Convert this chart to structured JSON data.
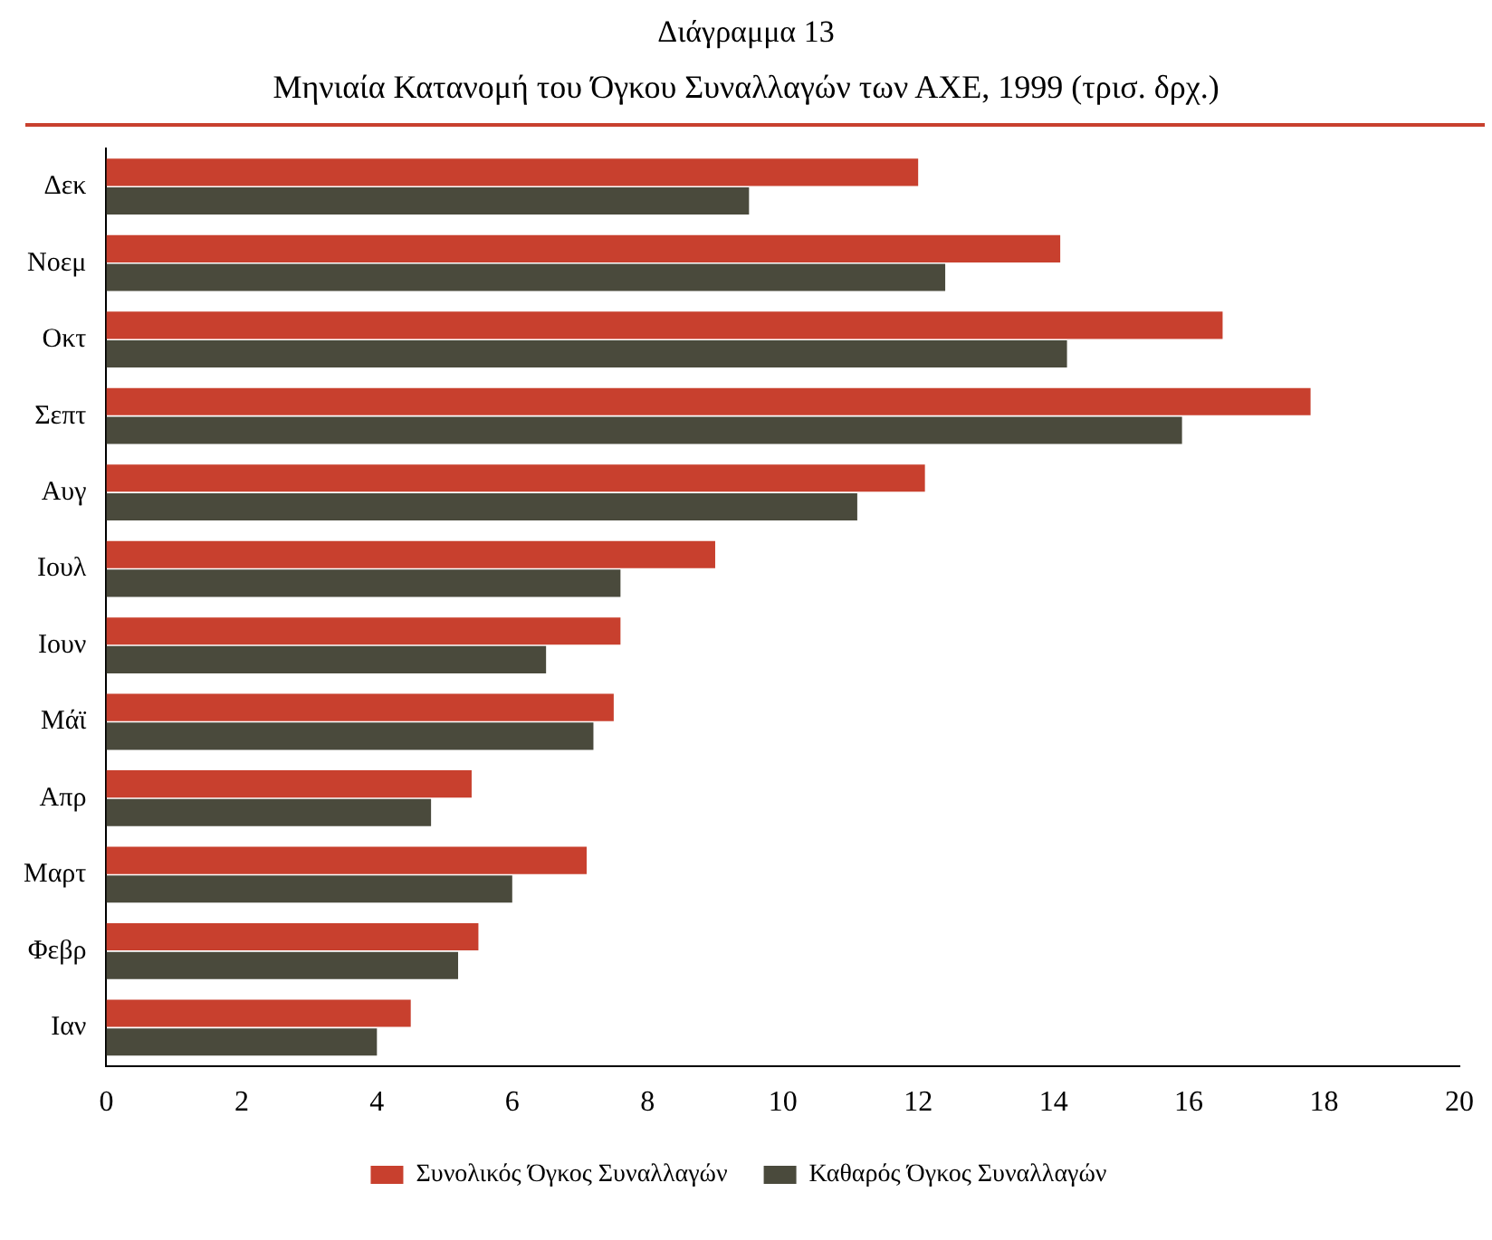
{
  "chart_data": {
    "type": "bar",
    "orientation": "horizontal",
    "title": "Διάγραμμα 13",
    "subtitle": "Μηνιαία Κατανομή του Όγκου Συναλλαγών των ΑΧΕ, 1999 (τρισ. δρχ.)",
    "categories": [
      "Δεκ",
      "Νοεμ",
      "Οκτ",
      "Σεπτ",
      "Αυγ",
      "Ιουλ",
      "Ιουν",
      "Μάϊ",
      "Απρ",
      "Μαρτ",
      "Φεβρ",
      "Ιαν"
    ],
    "series": [
      {
        "name": "Συνολικός Όγκος Συναλλαγών",
        "color": "#c8402e",
        "values": [
          12.0,
          14.1,
          16.5,
          17.8,
          12.1,
          9.0,
          7.6,
          7.5,
          5.4,
          7.1,
          5.5,
          4.5
        ]
      },
      {
        "name": "Καθαρός Όγκος Συναλλαγών",
        "color": "#4a4a3c",
        "values": [
          9.5,
          12.4,
          14.2,
          15.9,
          11.1,
          7.6,
          6.5,
          7.2,
          4.8,
          6.0,
          5.2,
          4.0
        ]
      }
    ],
    "xlim": [
      0,
      20
    ],
    "xticks": [
      0,
      2,
      4,
      6,
      8,
      10,
      12,
      14,
      16,
      18,
      20
    ],
    "grid": false,
    "legend": "bottom"
  }
}
